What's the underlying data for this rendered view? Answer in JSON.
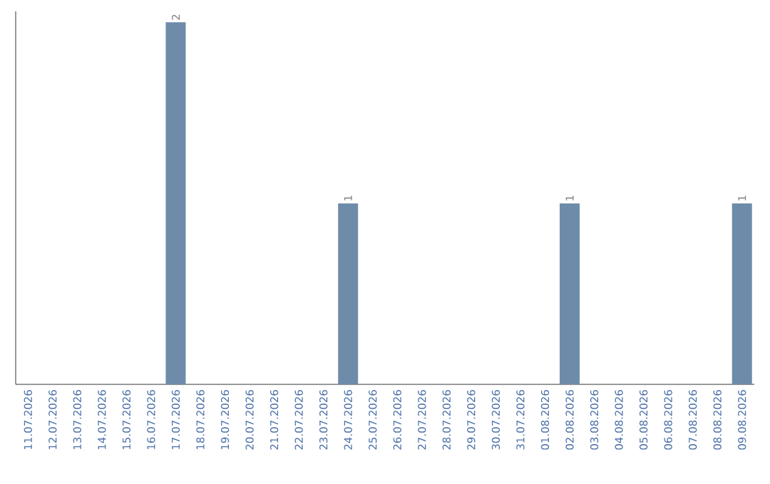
{
  "chart_data": {
    "type": "bar",
    "categories": [
      "11.07.2026",
      "12.07.2026",
      "13.07.2026",
      "14.07.2026",
      "15.07.2026",
      "16.07.2026",
      "17.07.2026",
      "18.07.2026",
      "19.07.2026",
      "20.07.2026",
      "21.07.2026",
      "22.07.2026",
      "23.07.2026",
      "24.07.2026",
      "25.07.2026",
      "26.07.2026",
      "27.07.2026",
      "28.07.2026",
      "29.07.2026",
      "30.07.2026",
      "31.07.2026",
      "01.08.2026",
      "02.08.2026",
      "03.08.2026",
      "04.08.2026",
      "05.08.2026",
      "06.08.2026",
      "07.08.2026",
      "08.08.2026",
      "09.08.2026"
    ],
    "values": [
      0,
      0,
      0,
      0,
      0,
      0,
      2,
      0,
      0,
      0,
      0,
      0,
      0,
      1,
      0,
      0,
      0,
      0,
      0,
      0,
      0,
      0,
      1,
      0,
      0,
      0,
      0,
      0,
      0,
      1
    ],
    "value_labels": [
      null,
      null,
      null,
      null,
      null,
      null,
      "2",
      null,
      null,
      null,
      null,
      null,
      null,
      "1",
      null,
      null,
      null,
      null,
      null,
      null,
      null,
      null,
      "1",
      null,
      null,
      null,
      null,
      null,
      null,
      "1"
    ],
    "color": "#6e8caa",
    "tick_labels": "x"
  }
}
